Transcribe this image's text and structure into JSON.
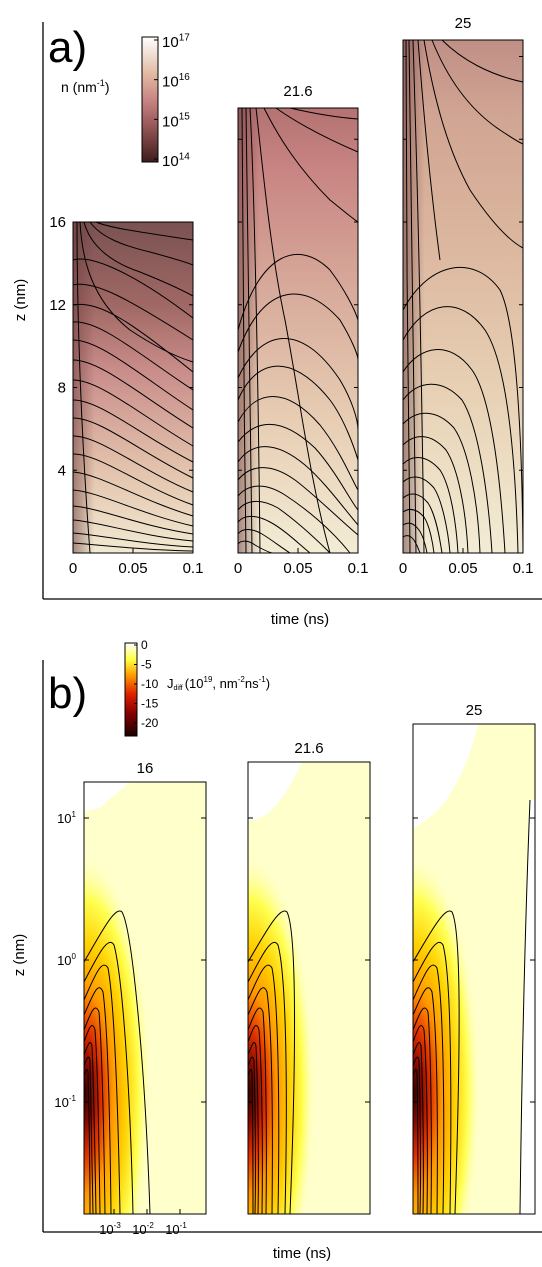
{
  "panel_a": {
    "letter": "a)",
    "colorbar": {
      "label_main": "n  (nm",
      "label_sup": "-1",
      "label_close": ")",
      "ticks": [
        {
          "base": "10",
          "exp": "17"
        },
        {
          "base": "10",
          "exp": "16"
        },
        {
          "base": "10",
          "exp": "15"
        },
        {
          "base": "10",
          "exp": "14"
        }
      ]
    },
    "ylabel": "z (nm)",
    "xlabel": "time (ns)",
    "titles": [
      "",
      "21.6",
      "25"
    ],
    "yticks": [
      "16",
      "12",
      "8",
      "4"
    ],
    "xticks": [
      "0",
      "0.05",
      "0.1"
    ]
  },
  "panel_b": {
    "letter": "b)",
    "colorbar": {
      "label_main": "J",
      "label_sub": "diff",
      "label_rest": "(10",
      "label_sup1": "19",
      "label_rest2": ", nm",
      "label_sup2": "-2",
      "label_rest3": "ns",
      "label_sup3": "-1",
      "label_close": ")",
      "ticks": [
        "0",
        "-5",
        "-10",
        "-15",
        "-20"
      ]
    },
    "ylabel": "z (nm)",
    "xlabel": "time (ns)",
    "titles": [
      "16",
      "21.6",
      "25"
    ],
    "yticks": [
      {
        "base": "10",
        "exp": "1"
      },
      {
        "base": "10",
        "exp": "0"
      },
      {
        "base": "10",
        "exp": "-1"
      }
    ],
    "xticks": [
      {
        "base": "10",
        "exp": "-3"
      },
      {
        "base": "10",
        "exp": "-2"
      },
      {
        "base": "10",
        "exp": "-1"
      }
    ]
  },
  "chart_data": [
    {
      "type": "heatmap",
      "panel": "a",
      "subplots": [
        "16",
        "21.6",
        "25"
      ],
      "x_range": [
        0,
        0.1
      ],
      "z_max": [
        16,
        21.6,
        25
      ],
      "color_range": [
        100000000000000.0,
        1e+17
      ],
      "color_scale": "log",
      "colors": {
        "low": "#4a2323",
        "mid": "#c57d7d",
        "high": "#fffff2"
      }
    },
    {
      "type": "heatmap",
      "panel": "b",
      "subplots": [
        "16",
        "21.6",
        "25"
      ],
      "x_range": [
        0.0002,
        0.2
      ],
      "x_scale": "log",
      "y_range": [
        0.05,
        18
      ],
      "y_scale": "log",
      "color_range": [
        -22,
        0
      ],
      "colors": {
        "low": "#2a0000",
        "mid": "#e02000",
        "high": "#ffffcc"
      }
    }
  ]
}
